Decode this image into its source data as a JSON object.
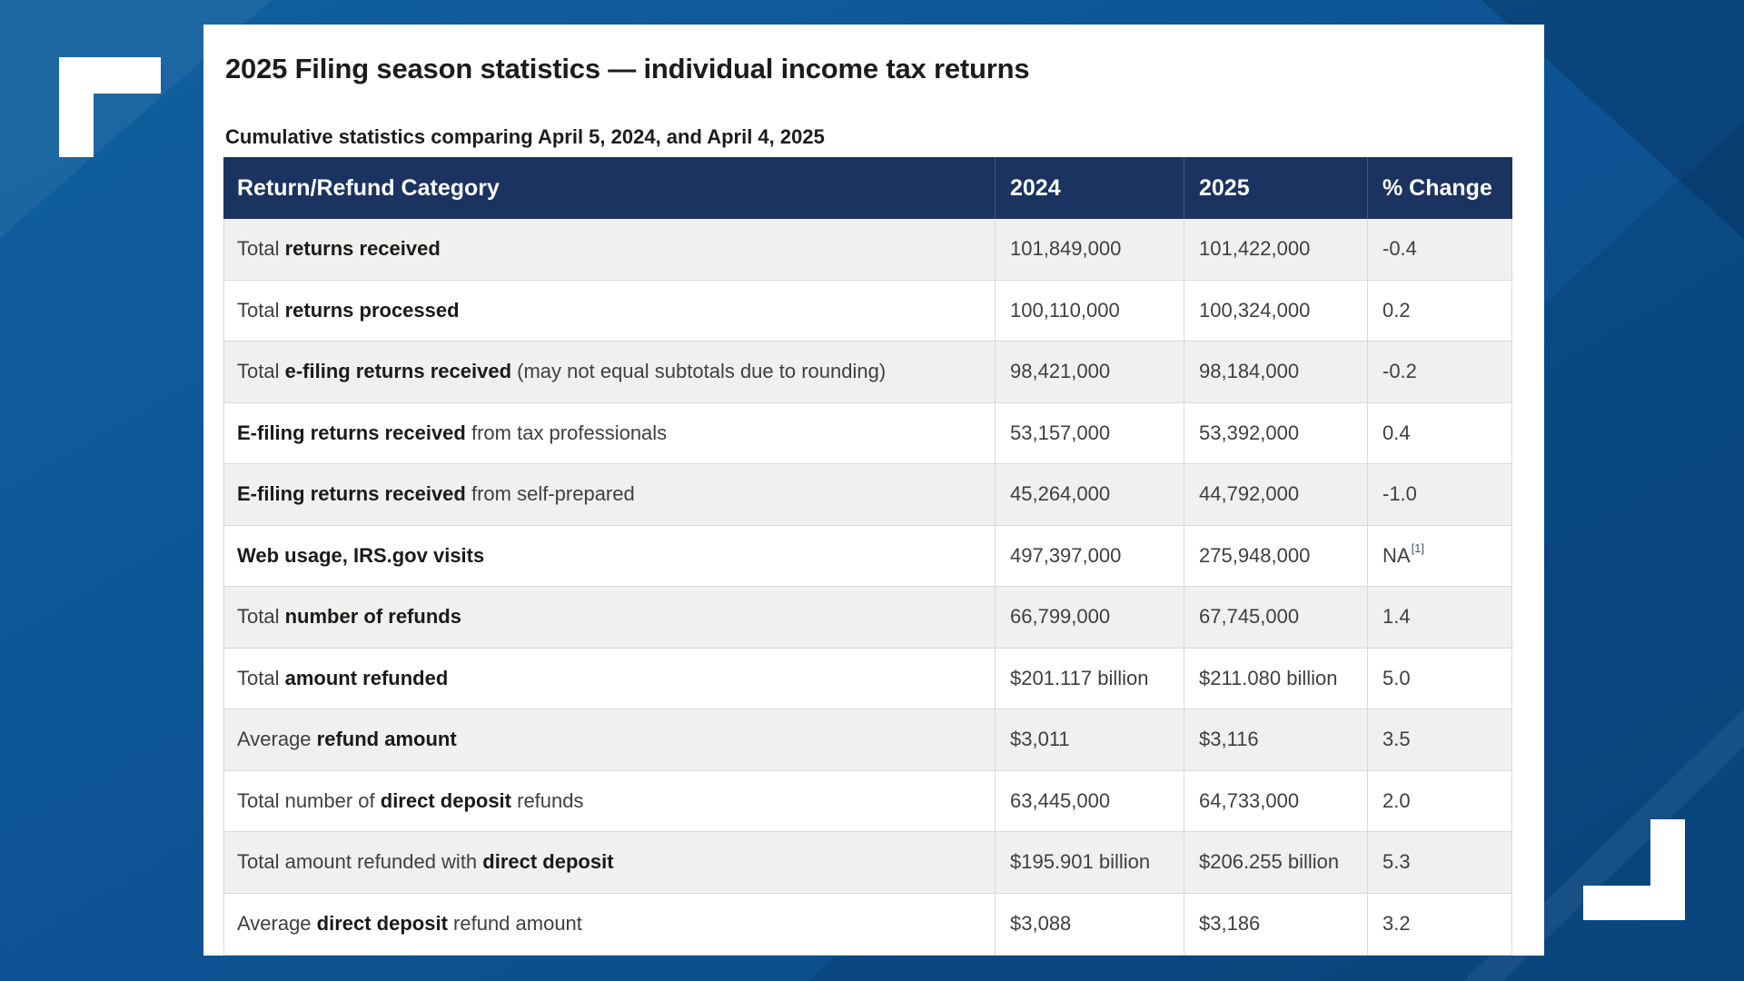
{
  "page": {
    "title": "2025 Filing season statistics — individual income tax returns",
    "subtitle": "Cumulative statistics comparing April 5, 2024, and April 4, 2025"
  },
  "table": {
    "columns": [
      "Return/Refund Category",
      "2024",
      "2025",
      "% Change"
    ],
    "rows": [
      {
        "category": [
          {
            "t": "Total ",
            "b": false
          },
          {
            "t": "returns received",
            "b": true
          }
        ],
        "y2024": "101,849,000",
        "y2025": "101,422,000",
        "change": "-0.4"
      },
      {
        "category": [
          {
            "t": "Total ",
            "b": false
          },
          {
            "t": "returns processed",
            "b": true
          }
        ],
        "y2024": "100,110,000",
        "y2025": "100,324,000",
        "change": "0.2"
      },
      {
        "category": [
          {
            "t": "Total ",
            "b": false
          },
          {
            "t": "e-filing returns received",
            "b": true
          },
          {
            "t": " (may not equal subtotals due to rounding)",
            "b": false
          }
        ],
        "y2024": "98,421,000",
        "y2025": "98,184,000",
        "change": "-0.2"
      },
      {
        "category": [
          {
            "t": "E-filing returns received",
            "b": true
          },
          {
            "t": " from tax professionals",
            "b": false
          }
        ],
        "y2024": "53,157,000",
        "y2025": "53,392,000",
        "change": "0.4"
      },
      {
        "category": [
          {
            "t": "E-filing returns received",
            "b": true
          },
          {
            "t": " from self-prepared",
            "b": false
          }
        ],
        "y2024": "45,264,000",
        "y2025": "44,792,000",
        "change": "-1.0"
      },
      {
        "category": [
          {
            "t": "Web usage, IRS.gov visits",
            "b": true
          }
        ],
        "y2024": "497,397,000",
        "y2025": "275,948,000",
        "change": "NA",
        "change_sup": "[1]"
      },
      {
        "category": [
          {
            "t": "Total ",
            "b": false
          },
          {
            "t": "number of refunds",
            "b": true
          }
        ],
        "y2024": "66,799,000",
        "y2025": "67,745,000",
        "change": "1.4"
      },
      {
        "category": [
          {
            "t": "Total ",
            "b": false
          },
          {
            "t": "amount refunded",
            "b": true
          }
        ],
        "y2024": "$201.117 billion",
        "y2025": "$211.080 billion",
        "change": "5.0"
      },
      {
        "category": [
          {
            "t": "Average ",
            "b": false
          },
          {
            "t": "refund amount",
            "b": true
          }
        ],
        "y2024": "$3,011",
        "y2025": "$3,116",
        "change": "3.5"
      },
      {
        "category": [
          {
            "t": "Total number of ",
            "b": false
          },
          {
            "t": "direct deposit",
            "b": true
          },
          {
            "t": " refunds",
            "b": false
          }
        ],
        "y2024": "63,445,000",
        "y2025": "64,733,000",
        "change": "2.0"
      },
      {
        "category": [
          {
            "t": "Total amount refunded with ",
            "b": false
          },
          {
            "t": "direct deposit",
            "b": true
          }
        ],
        "y2024": "$195.901 billion",
        "y2025": "$206.255 billion",
        "change": "5.3"
      },
      {
        "category": [
          {
            "t": "Average ",
            "b": false
          },
          {
            "t": "direct deposit",
            "b": true
          },
          {
            "t": " refund amount",
            "b": false
          }
        ],
        "y2024": "$3,088",
        "y2025": "$3,186",
        "change": "3.2"
      }
    ]
  },
  "colors": {
    "background_blue": "#0e5495",
    "header_navy": "#1a3360",
    "row_alt_gray": "#f0f0ef",
    "bracket_white": "#ffffff",
    "body_text": "#3f3f3f"
  }
}
